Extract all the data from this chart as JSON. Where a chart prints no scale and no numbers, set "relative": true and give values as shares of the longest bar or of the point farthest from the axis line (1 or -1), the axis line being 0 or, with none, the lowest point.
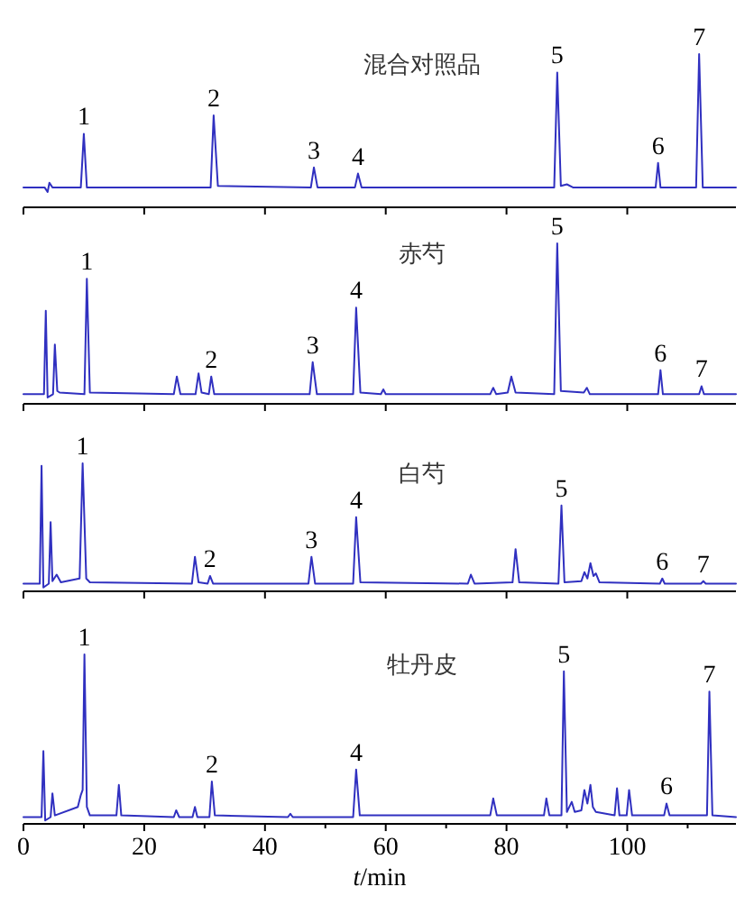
{
  "chart_data": [
    {
      "type": "line",
      "relative": true,
      "title": "混合对照品",
      "xlim": [
        0,
        118
      ],
      "xticks": [
        0,
        20,
        40,
        60,
        80,
        100
      ],
      "tick_labels": false,
      "marker": "none",
      "line_style": "solid",
      "x": [
        0,
        3.5,
        4,
        4.3,
        4.8,
        9.5,
        10,
        10.5,
        31,
        31.5,
        32.2,
        47.6,
        48.1,
        48.7,
        54.9,
        55.4,
        56,
        87.9,
        88.4,
        89,
        90,
        91,
        104.7,
        105.1,
        105.5,
        111.4,
        111.9,
        112.5,
        118
      ],
      "series": [
        {
          "color": "#3030c0",
          "values": [
            0.13,
            0.13,
            0.1,
            0.16,
            0.13,
            0.13,
            0.48,
            0.13,
            0.13,
            0.6,
            0.14,
            0.13,
            0.26,
            0.13,
            0.13,
            0.22,
            0.13,
            0.13,
            0.88,
            0.14,
            0.15,
            0.13,
            0.13,
            0.29,
            0.13,
            0.13,
            1.0,
            0.13,
            0.13
          ]
        }
      ],
      "annotations": [
        {
          "text": "1",
          "x": 10,
          "y": 0.48
        },
        {
          "text": "2",
          "x": 31.5,
          "y": 0.6
        },
        {
          "text": "3",
          "x": 48.1,
          "y": 0.26
        },
        {
          "text": "4",
          "x": 55.4,
          "y": 0.22
        },
        {
          "text": "5",
          "x": 88.4,
          "y": 0.88
        },
        {
          "text": "6",
          "x": 105.1,
          "y": 0.29
        },
        {
          "text": "7",
          "x": 111.9,
          "y": 1.0
        }
      ]
    },
    {
      "type": "line",
      "relative": true,
      "title": "赤芍",
      "xlim": [
        0,
        118
      ],
      "xticks": [
        0,
        20,
        40,
        60,
        80,
        100
      ],
      "tick_labels": false,
      "marker": "none",
      "line_style": "solid",
      "x": [
        0,
        3.4,
        3.7,
        4.0,
        4.9,
        5.2,
        5.6,
        6,
        10.1,
        10.5,
        11,
        24.9,
        25.4,
        26,
        28.5,
        29,
        29.5,
        30.7,
        31.1,
        31.6,
        47.4,
        47.9,
        48.6,
        54.6,
        55.1,
        55.8,
        59.2,
        59.6,
        60,
        77.3,
        77.8,
        78.3,
        80.2,
        80.8,
        81.5,
        87.9,
        88.4,
        89,
        92.8,
        93.3,
        93.8,
        105.1,
        105.5,
        105.9,
        111.9,
        112.3,
        112.7,
        118
      ],
      "series": [
        {
          "color": "#3030c0",
          "values": [
            0.06,
            0.06,
            0.58,
            0.04,
            0.06,
            0.37,
            0.08,
            0.07,
            0.06,
            0.78,
            0.07,
            0.06,
            0.17,
            0.06,
            0.06,
            0.19,
            0.07,
            0.06,
            0.17,
            0.06,
            0.06,
            0.26,
            0.06,
            0.06,
            0.6,
            0.07,
            0.06,
            0.09,
            0.06,
            0.06,
            0.1,
            0.06,
            0.07,
            0.17,
            0.07,
            0.06,
            1.0,
            0.08,
            0.07,
            0.1,
            0.06,
            0.06,
            0.21,
            0.06,
            0.06,
            0.11,
            0.06,
            0.06
          ]
        }
      ],
      "annotations": [
        {
          "text": "1",
          "x": 10.5,
          "y": 0.78
        },
        {
          "text": "2",
          "x": 31.1,
          "y": 0.17
        },
        {
          "text": "3",
          "x": 47.9,
          "y": 0.26
        },
        {
          "text": "4",
          "x": 55.1,
          "y": 0.6
        },
        {
          "text": "5",
          "x": 88.4,
          "y": 1.0
        },
        {
          "text": "6",
          "x": 105.5,
          "y": 0.21
        },
        {
          "text": "7",
          "x": 112.3,
          "y": 0.11
        }
      ]
    },
    {
      "type": "line",
      "relative": true,
      "title": "白芍",
      "xlim": [
        0,
        118
      ],
      "xticks": [
        0,
        20,
        40,
        60,
        80,
        100
      ],
      "tick_labels": false,
      "marker": "none",
      "line_style": "solid",
      "x": [
        0,
        2.7,
        3.0,
        3.3,
        4.2,
        4.5,
        4.8,
        5.5,
        6.2,
        9.3,
        9.8,
        10.4,
        11,
        27.9,
        28.4,
        29,
        30.5,
        30.9,
        31.4,
        47.2,
        47.7,
        48.3,
        54.6,
        55.1,
        55.8,
        73.6,
        74.1,
        74.7,
        81,
        81.5,
        82.1,
        88.6,
        89.1,
        89.6,
        92.4,
        92.9,
        93.4,
        93.9,
        94.4,
        94.8,
        95.4,
        105.4,
        105.8,
        106.2,
        112.2,
        112.6,
        113,
        118
      ],
      "series": [
        {
          "color": "#3030c0",
          "values": [
            0.06,
            0.06,
            0.98,
            0.03,
            0.06,
            0.54,
            0.08,
            0.13,
            0.07,
            0.1,
            1.0,
            0.1,
            0.07,
            0.06,
            0.27,
            0.07,
            0.06,
            0.12,
            0.06,
            0.06,
            0.27,
            0.06,
            0.06,
            0.58,
            0.07,
            0.06,
            0.13,
            0.06,
            0.07,
            0.33,
            0.07,
            0.06,
            0.67,
            0.07,
            0.08,
            0.15,
            0.1,
            0.22,
            0.12,
            0.14,
            0.07,
            0.06,
            0.1,
            0.06,
            0.06,
            0.08,
            0.06,
            0.06
          ]
        }
      ],
      "annotations": [
        {
          "text": "1",
          "x": 9.8,
          "y": 1.0
        },
        {
          "text": "2",
          "x": 30.9,
          "y": 0.12
        },
        {
          "text": "3",
          "x": 47.7,
          "y": 0.27
        },
        {
          "text": "4",
          "x": 55.1,
          "y": 0.58
        },
        {
          "text": "5",
          "x": 89.1,
          "y": 0.67
        },
        {
          "text": "6",
          "x": 105.8,
          "y": 0.1
        },
        {
          "text": "7",
          "x": 112.6,
          "y": 0.08
        }
      ]
    },
    {
      "type": "line",
      "relative": true,
      "title": "牡丹皮",
      "xlabel": "*t*/min",
      "xlim": [
        0,
        118
      ],
      "xticks": [
        0,
        {
          "value": 10,
          "label": null
        },
        20,
        {
          "value": 30,
          "label": null
        },
        40,
        {
          "value": 50,
          "label": null
        },
        60,
        {
          "value": 70,
          "label": null
        },
        80,
        {
          "value": 90,
          "label": null
        },
        100,
        {
          "value": 110,
          "label": null
        }
      ],
      "tick_labels": "x",
      "marker": "none",
      "line_style": "solid",
      "x": [
        0,
        3.0,
        3.3,
        3.6,
        4.5,
        4.8,
        5.2,
        9.0,
        9.5,
        9.8,
        10.1,
        10.5,
        11,
        15.4,
        15.8,
        16.2,
        24.9,
        25.3,
        25.8,
        28,
        28.4,
        28.8,
        30.8,
        31.2,
        31.7,
        43.8,
        44.2,
        44.6,
        54.6,
        55.1,
        55.7,
        77.3,
        77.8,
        78.4,
        86.2,
        86.6,
        87.1,
        89.1,
        89.5,
        90,
        90.8,
        91.3,
        92.4,
        92.9,
        93.4,
        93.9,
        94.3,
        94.8,
        97.9,
        98.3,
        98.7,
        99.9,
        100.3,
        100.8,
        106.1,
        106.5,
        107,
        113.2,
        113.6,
        114.1,
        118
      ],
      "series": [
        {
          "color": "#3030c0",
          "values": [
            0.04,
            0.04,
            0.43,
            0.02,
            0.04,
            0.18,
            0.05,
            0.1,
            0.17,
            0.2,
            1.0,
            0.1,
            0.05,
            0.05,
            0.23,
            0.05,
            0.04,
            0.08,
            0.04,
            0.04,
            0.1,
            0.04,
            0.04,
            0.25,
            0.05,
            0.04,
            0.06,
            0.04,
            0.04,
            0.32,
            0.05,
            0.05,
            0.15,
            0.05,
            0.05,
            0.15,
            0.05,
            0.05,
            0.9,
            0.07,
            0.13,
            0.07,
            0.08,
            0.2,
            0.12,
            0.23,
            0.1,
            0.07,
            0.05,
            0.21,
            0.05,
            0.05,
            0.2,
            0.05,
            0.05,
            0.12,
            0.05,
            0.05,
            0.78,
            0.05,
            0.04
          ]
        }
      ],
      "annotations": [
        {
          "text": "1",
          "x": 10.1,
          "y": 1.0
        },
        {
          "text": "2",
          "x": 31.2,
          "y": 0.25
        },
        {
          "text": "4",
          "x": 55.1,
          "y": 0.32
        },
        {
          "text": "5",
          "x": 89.5,
          "y": 0.9
        },
        {
          "text": "6",
          "x": 106.5,
          "y": 0.12
        },
        {
          "text": "7",
          "x": 113.6,
          "y": 0.78
        }
      ]
    }
  ]
}
